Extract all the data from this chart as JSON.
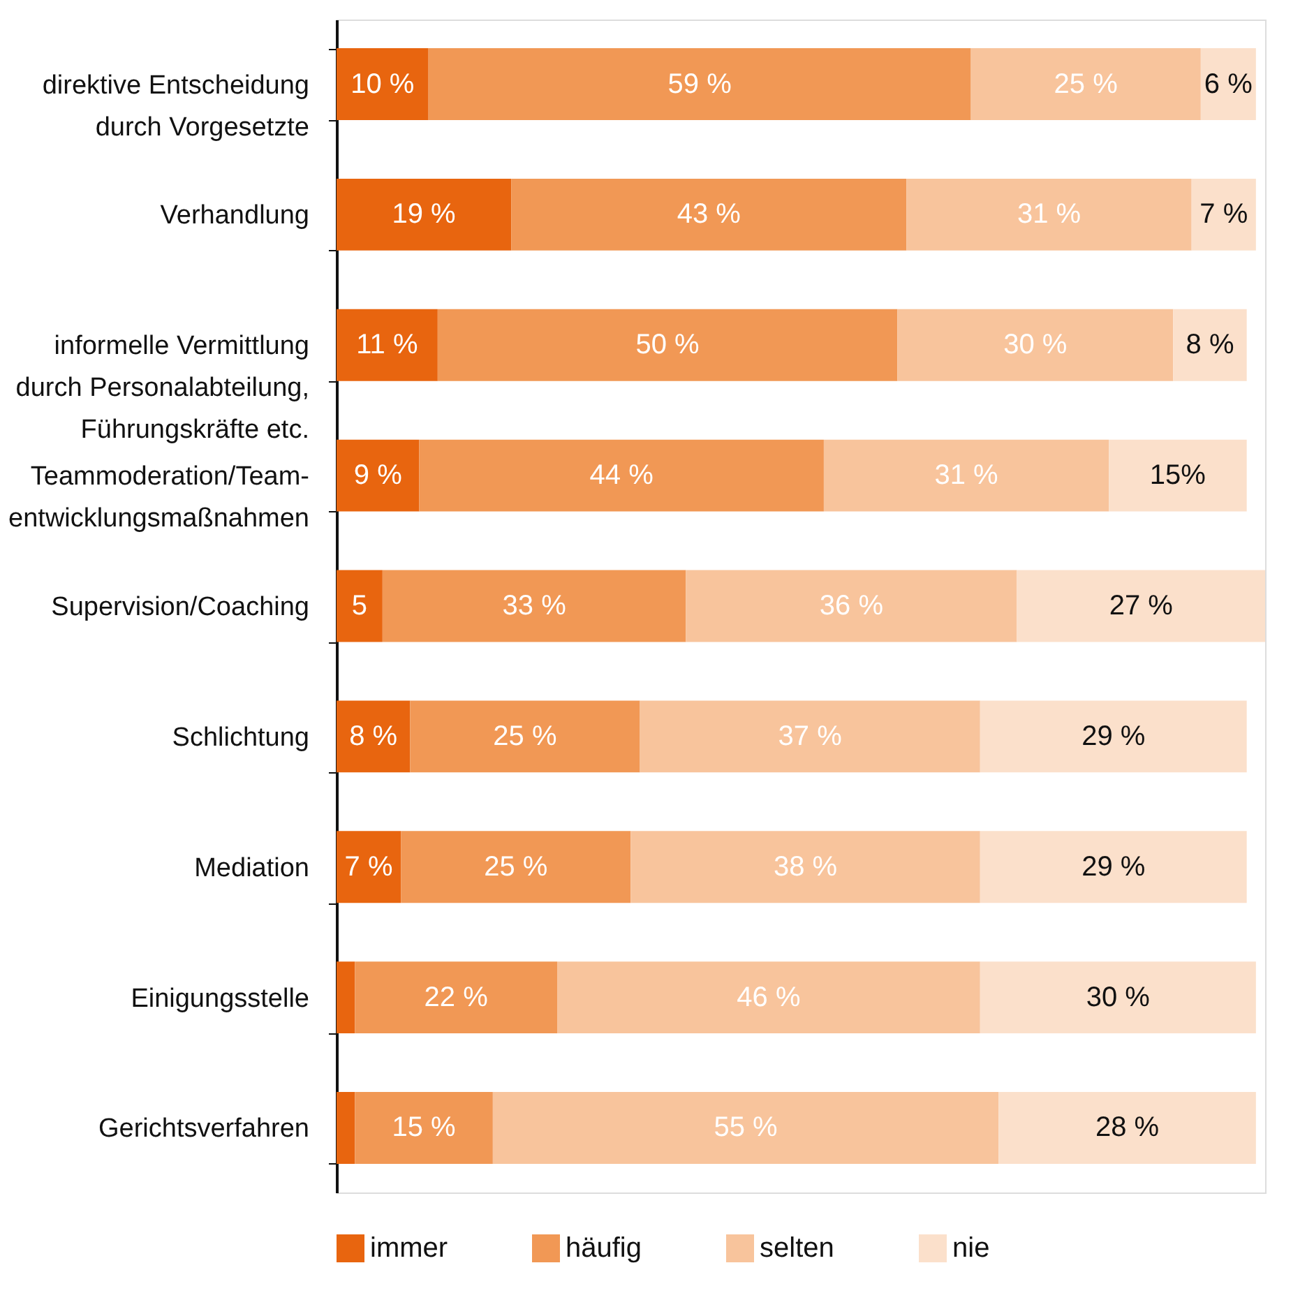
{
  "chart_data": {
    "type": "bar",
    "orientation": "horizontal",
    "stacked": true,
    "legend": "bottom",
    "grid": false,
    "categories": [
      "direktive Entscheidung\ndurch Vorgesetzte",
      "Verhandlung",
      "informelle Vermittlung\ndurch Personalabteilung,\nFührungskräfte etc.",
      "Teammoderation/Team-\nentwicklungsmaßnahmen",
      "Supervision/Coaching",
      "Schlichtung",
      "Mediation",
      "Einigungsstelle",
      "Gerichtsverfahren"
    ],
    "series": [
      {
        "name": "immer",
        "color": "#e8650f",
        "values": [
          10,
          19,
          11,
          9,
          5,
          8,
          7,
          2,
          2
        ],
        "value_labels": [
          "10 %",
          "19 %",
          "11 %",
          "9 %",
          "5",
          "8 %",
          "7 %",
          null,
          null
        ]
      },
      {
        "name": "häufig",
        "color": "#f19855",
        "values": [
          59,
          43,
          50,
          44,
          33,
          25,
          25,
          22,
          15
        ],
        "value_labels": [
          "59 %",
          "43 %",
          "50 %",
          "44 %",
          "33 %",
          "25 %",
          "25 %",
          "22 %",
          "15 %"
        ]
      },
      {
        "name": "selten",
        "color": "#f8c49c",
        "values": [
          25,
          31,
          30,
          31,
          36,
          37,
          38,
          46,
          55
        ],
        "value_labels": [
          "25 %",
          "31 %",
          "30 %",
          "31 %",
          "36 %",
          "37 %",
          "38 %",
          "46 %",
          "55 %"
        ]
      },
      {
        "name": "nie",
        "color": "#fbe0cb",
        "values": [
          6,
          7,
          8,
          15,
          27,
          29,
          29,
          30,
          28
        ],
        "value_labels": [
          "6 %",
          "7 %",
          "8 %",
          "15%",
          "27 %",
          "29 %",
          "29 %",
          "30 %",
          "28 %"
        ]
      }
    ]
  }
}
